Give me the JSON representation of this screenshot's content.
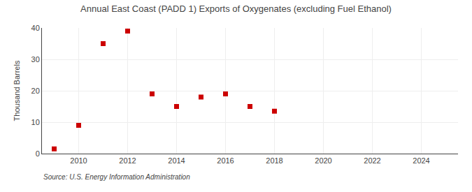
{
  "chart_data": {
    "type": "scatter",
    "title": "Annual East Coast (PADD 1) Exports of Oxygenates (excluding Fuel Ethanol)",
    "ylabel": "Thousand Barrels",
    "annotations": [
      "Source: U.S. Energy Information Administration"
    ],
    "x": [
      2009,
      2010,
      2011,
      2012,
      2013,
      2014,
      2015,
      2016,
      2017,
      2018
    ],
    "values": [
      1.5,
      9,
      35,
      39,
      19,
      15,
      18,
      19,
      15,
      13.5
    ],
    "xlim": [
      2008.5,
      2025.5
    ],
    "ylim": [
      0,
      40
    ],
    "xticks": [
      2010,
      2012,
      2014,
      2016,
      2018,
      2020,
      2022,
      2024
    ],
    "yticks": [
      0,
      10,
      20,
      30,
      40
    ],
    "color": "#cc0000",
    "marker": "square",
    "grid": true
  }
}
